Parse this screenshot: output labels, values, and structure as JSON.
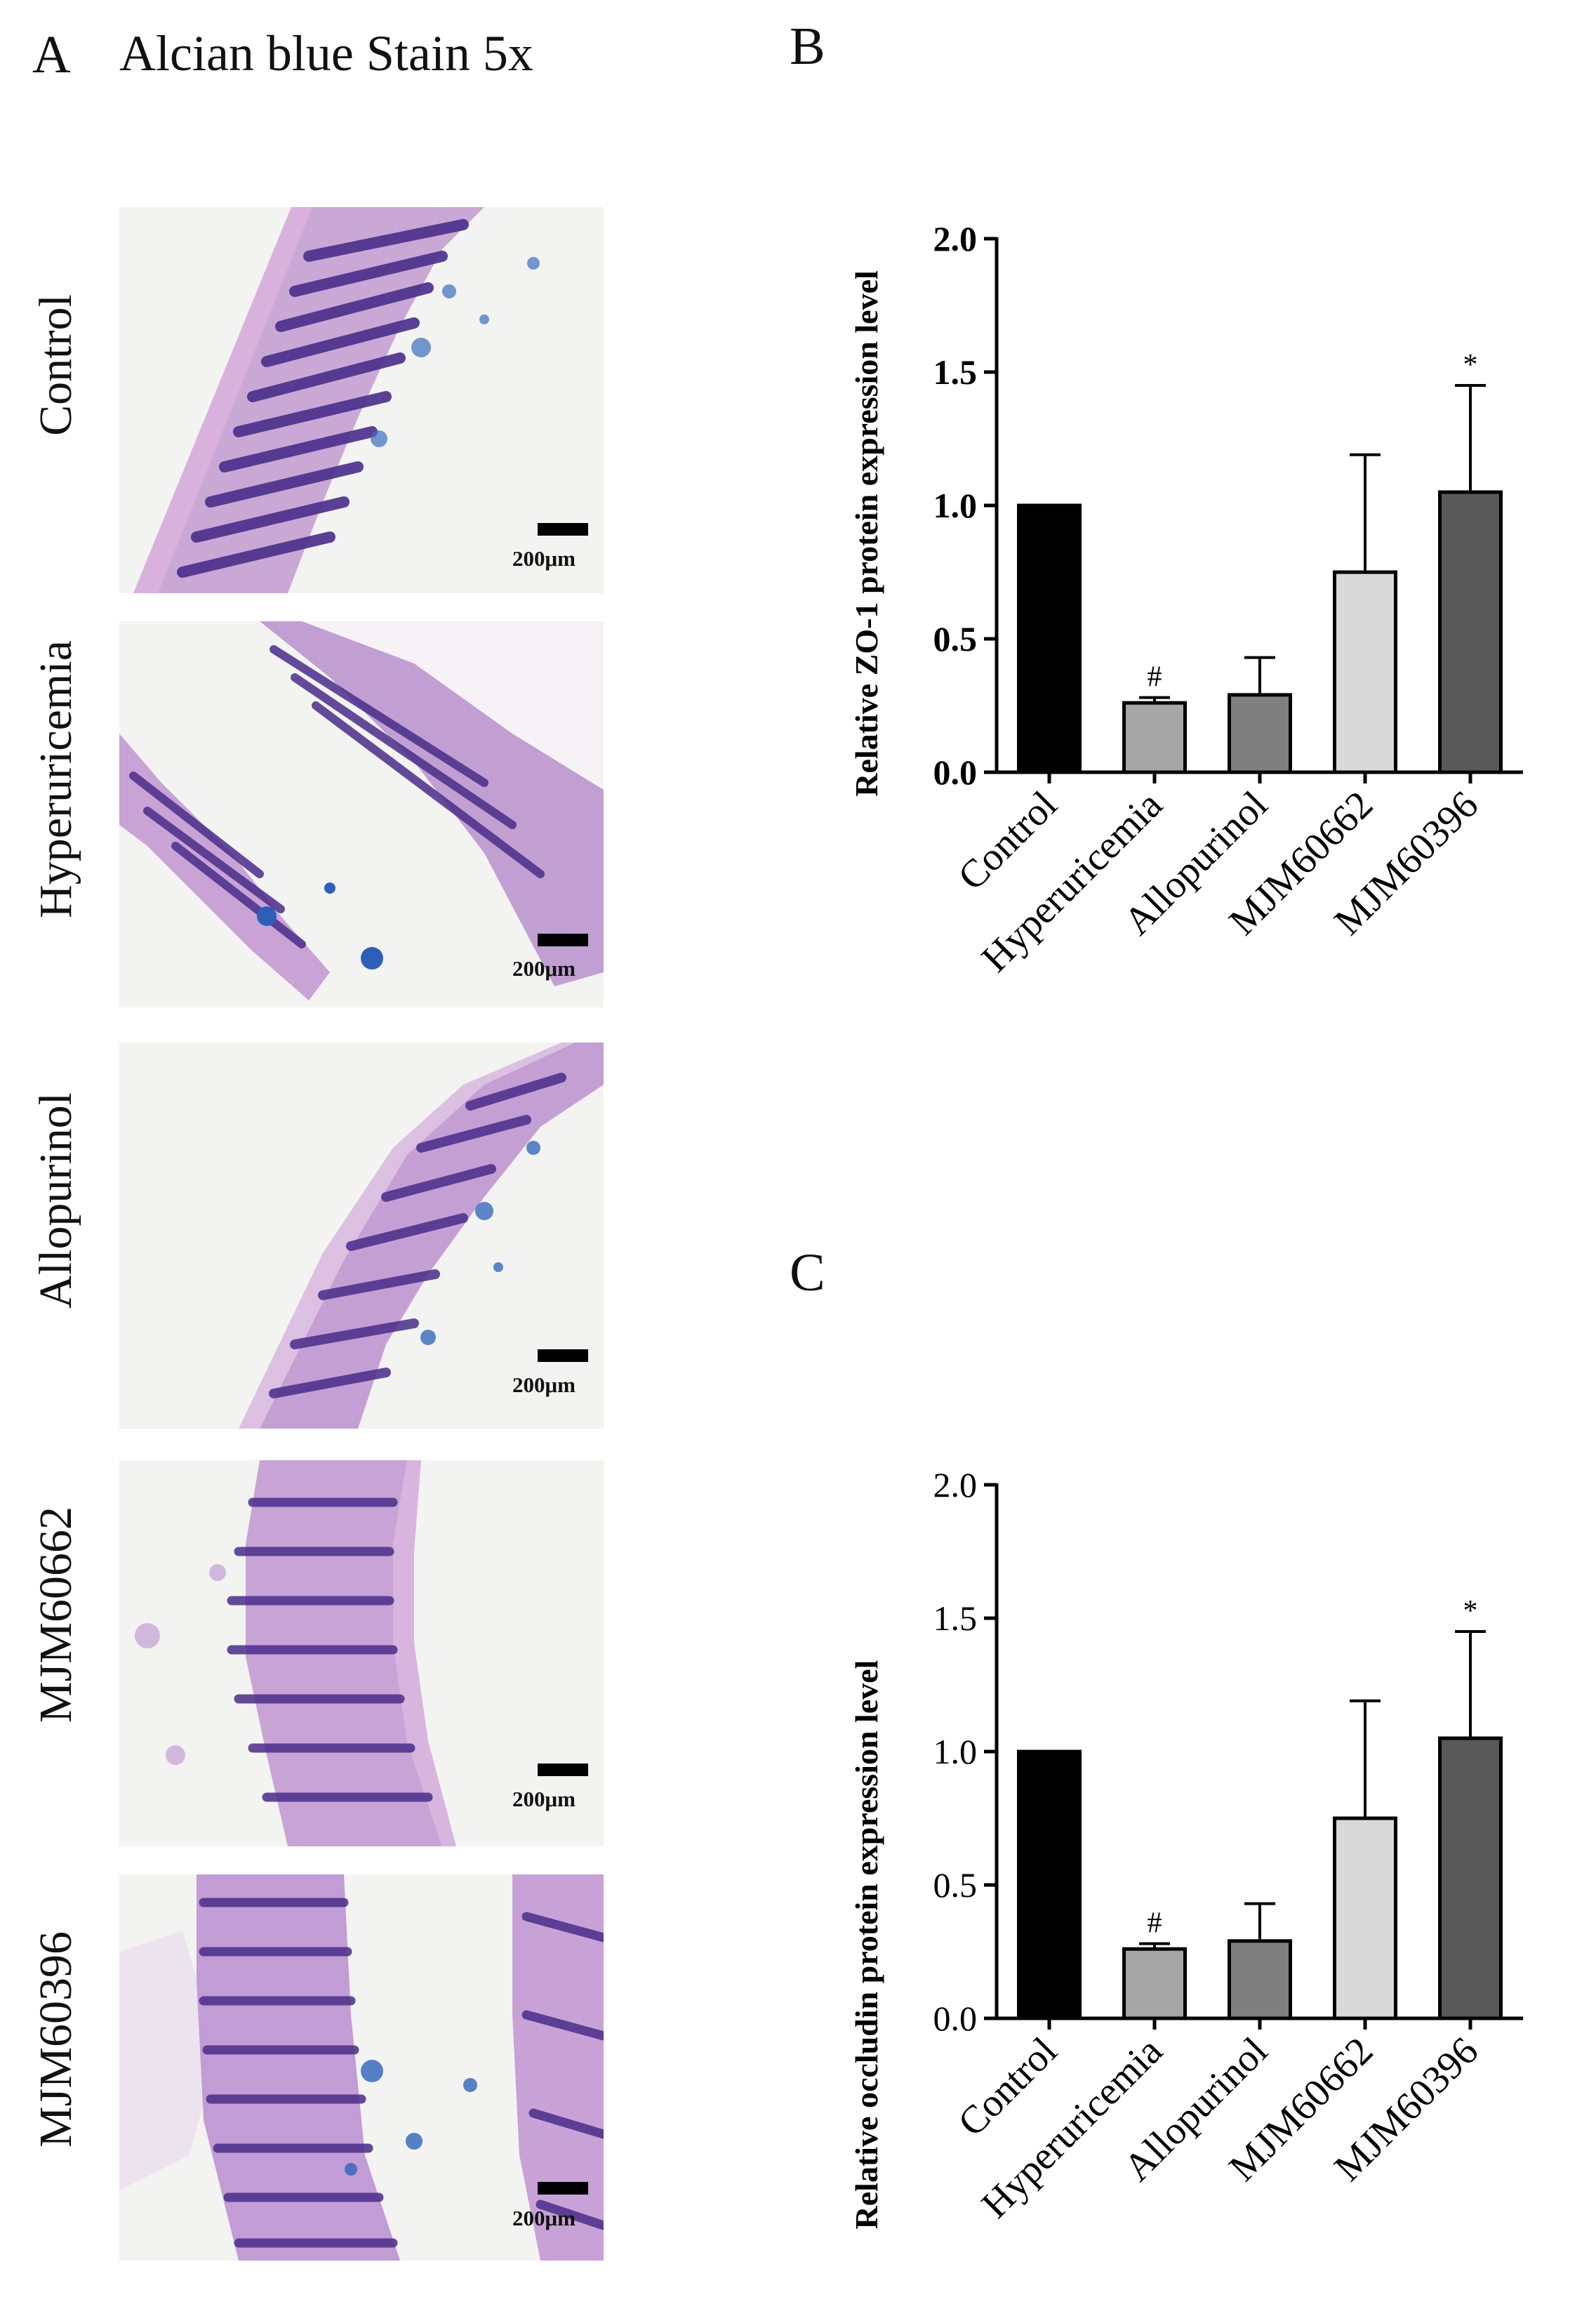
{
  "panel_a": {
    "letter": "A",
    "title": "Alcian blue Stain 5x",
    "scale_label": "200μm",
    "rows": [
      {
        "label": "Control"
      },
      {
        "label": "Hyperuricemia"
      },
      {
        "label": "Allopurinol"
      },
      {
        "label": "MJM60662"
      },
      {
        "label": "MJM60396"
      }
    ]
  },
  "chart_data": [
    {
      "panel": "B",
      "type": "bar",
      "ylabel": "Relative ZO-1 protein expression level",
      "categories": [
        "Control",
        "Hyperuricemia",
        "Allopurinol",
        "MJM60662",
        "MJM60396"
      ],
      "values": [
        1.0,
        0.26,
        0.29,
        0.75,
        1.05
      ],
      "errors": [
        0,
        0.02,
        0.14,
        0.44,
        0.4
      ],
      "annotations": [
        "",
        "#",
        "",
        "",
        "*"
      ],
      "bar_colors": [
        "#000000",
        "#a6a6a6",
        "#7f7f7f",
        "#d9d9d9",
        "#595959"
      ],
      "ylim": [
        0,
        2.0
      ],
      "yticks": [
        "0.0",
        "0.5",
        "1.0",
        "1.5",
        "2.0"
      ]
    },
    {
      "panel": "C",
      "type": "bar",
      "ylabel": "Relative occludin protein expression level",
      "categories": [
        "Control",
        "Hyperuricemia",
        "Allopurinol",
        "MJM60662",
        "MJM60396"
      ],
      "values": [
        1.0,
        0.26,
        0.29,
        0.75,
        1.05
      ],
      "errors": [
        0,
        0.02,
        0.14,
        0.44,
        0.4
      ],
      "annotations": [
        "",
        "#",
        "",
        "",
        "*"
      ],
      "bar_colors": [
        "#000000",
        "#a6a6a6",
        "#7f7f7f",
        "#d9d9d9",
        "#595959"
      ],
      "ylim": [
        0,
        2.0
      ],
      "yticks": [
        "0.0",
        "0.5",
        "1.0",
        "1.5",
        "2.0"
      ]
    }
  ]
}
